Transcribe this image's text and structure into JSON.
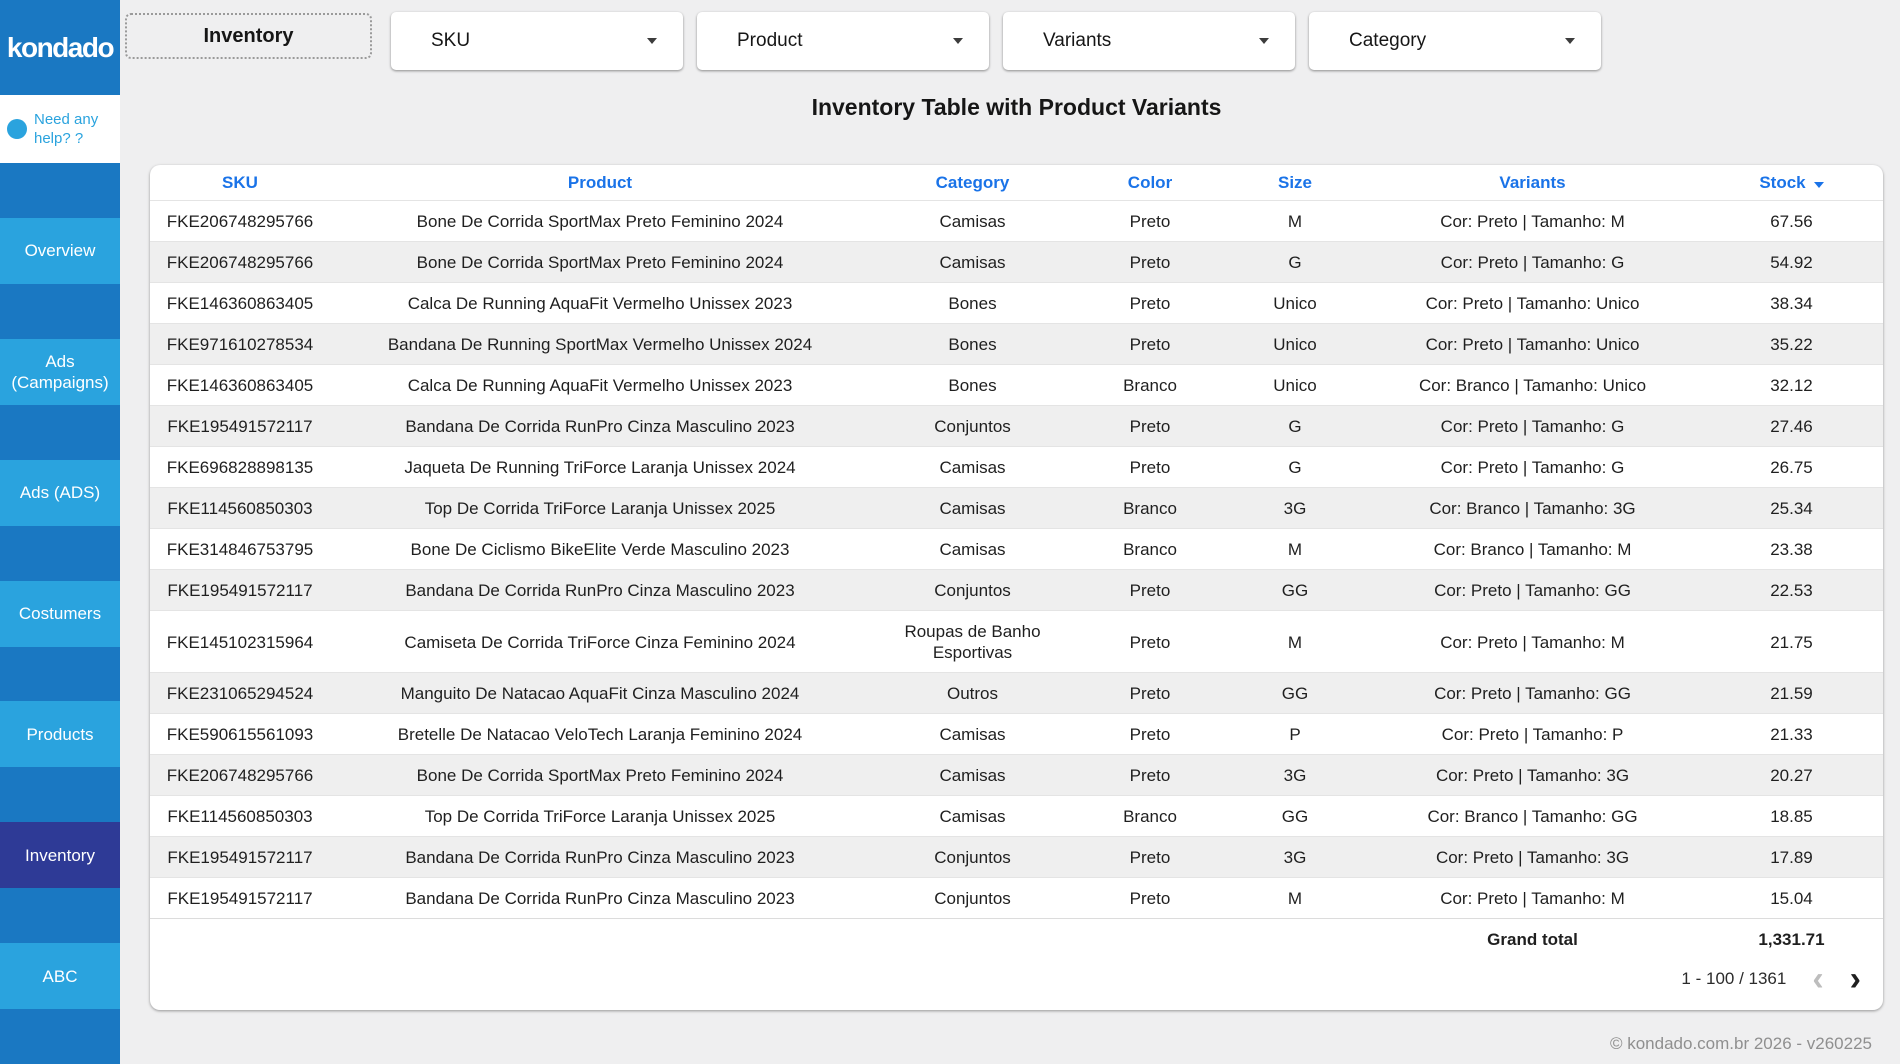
{
  "sidebar": {
    "logo": "kondado",
    "help": {
      "line1": "Need any",
      "line2": "help? ?"
    },
    "items": [
      {
        "label": "Overview",
        "active": false
      },
      {
        "label": "Ads (Campaigns)",
        "active": false
      },
      {
        "label": "Ads (ADS)",
        "active": false
      },
      {
        "label": "Costumers",
        "active": false
      },
      {
        "label": "Products",
        "active": false
      },
      {
        "label": "Inventory",
        "active": true
      },
      {
        "label": "ABC",
        "active": false
      }
    ]
  },
  "topbar": {
    "page_tab": "Inventory",
    "filters": [
      {
        "label": "SKU"
      },
      {
        "label": "Product"
      },
      {
        "label": "Variants"
      },
      {
        "label": "Category"
      }
    ]
  },
  "table": {
    "title": "Inventory Table with Product Variants",
    "columns": [
      "SKU",
      "Product",
      "Category",
      "Color",
      "Size",
      "Variants",
      "Stock"
    ],
    "sorted_column": "Stock",
    "sort_direction": "desc",
    "rows": [
      [
        "FKE206748295766",
        "Bone De Corrida SportMax Preto Feminino 2024",
        "Camisas",
        "Preto",
        "M",
        "Cor: Preto | Tamanho: M",
        "67.56"
      ],
      [
        "FKE206748295766",
        "Bone De Corrida SportMax Preto Feminino 2024",
        "Camisas",
        "Preto",
        "G",
        "Cor: Preto | Tamanho: G",
        "54.92"
      ],
      [
        "FKE146360863405",
        "Calca De Running AquaFit Vermelho Unissex 2023",
        "Bones",
        "Preto",
        "Unico",
        "Cor: Preto | Tamanho: Unico",
        "38.34"
      ],
      [
        "FKE971610278534",
        "Bandana De Running SportMax Vermelho Unissex 2024",
        "Bones",
        "Preto",
        "Unico",
        "Cor: Preto | Tamanho: Unico",
        "35.22"
      ],
      [
        "FKE146360863405",
        "Calca De Running AquaFit Vermelho Unissex 2023",
        "Bones",
        "Branco",
        "Unico",
        "Cor: Branco | Tamanho: Unico",
        "32.12"
      ],
      [
        "FKE195491572117",
        "Bandana De Corrida RunPro Cinza Masculino 2023",
        "Conjuntos",
        "Preto",
        "G",
        "Cor: Preto | Tamanho: G",
        "27.46"
      ],
      [
        "FKE696828898135",
        "Jaqueta De Running TriForce Laranja Unissex 2024",
        "Camisas",
        "Preto",
        "G",
        "Cor: Preto | Tamanho: G",
        "26.75"
      ],
      [
        "FKE114560850303",
        "Top De Corrida TriForce Laranja Unissex 2025",
        "Camisas",
        "Branco",
        "3G",
        "Cor: Branco | Tamanho: 3G",
        "25.34"
      ],
      [
        "FKE314846753795",
        "Bone De Ciclismo BikeElite Verde Masculino 2023",
        "Camisas",
        "Branco",
        "M",
        "Cor: Branco | Tamanho: M",
        "23.38"
      ],
      [
        "FKE195491572117",
        "Bandana De Corrida RunPro Cinza Masculino 2023",
        "Conjuntos",
        "Preto",
        "GG",
        "Cor: Preto | Tamanho: GG",
        "22.53"
      ],
      [
        "FKE145102315964",
        "Camiseta De Corrida TriForce Cinza Feminino 2024",
        "Roupas de Banho Esportivas",
        "Preto",
        "M",
        "Cor: Preto | Tamanho: M",
        "21.75"
      ],
      [
        "FKE231065294524",
        "Manguito De Natacao AquaFit Cinza Masculino 2024",
        "Outros",
        "Preto",
        "GG",
        "Cor: Preto | Tamanho: GG",
        "21.59"
      ],
      [
        "FKE590615561093",
        "Bretelle De Natacao VeloTech Laranja Feminino 2024",
        "Camisas",
        "Preto",
        "P",
        "Cor: Preto | Tamanho: P",
        "21.33"
      ],
      [
        "FKE206748295766",
        "Bone De Corrida SportMax Preto Feminino 2024",
        "Camisas",
        "Preto",
        "3G",
        "Cor: Preto | Tamanho: 3G",
        "20.27"
      ],
      [
        "FKE114560850303",
        "Top De Corrida TriForce Laranja Unissex 2025",
        "Camisas",
        "Branco",
        "GG",
        "Cor: Branco | Tamanho: GG",
        "18.85"
      ],
      [
        "FKE195491572117",
        "Bandana De Corrida RunPro Cinza Masculino 2023",
        "Conjuntos",
        "Preto",
        "3G",
        "Cor: Preto | Tamanho: 3G",
        "17.89"
      ],
      [
        "FKE195491572117",
        "Bandana De Corrida RunPro Cinza Masculino 2023",
        "Conjuntos",
        "Preto",
        "M",
        "Cor: Preto | Tamanho: M",
        "15.04"
      ]
    ],
    "grand_total_label": "Grand total",
    "grand_total_value": "1,331.71",
    "pagination": {
      "range": "1 - 100 / 1361"
    }
  },
  "icons": {
    "help_dot": "circle",
    "dropdown_caret": "triangle-down",
    "sort_caret": "triangle-down",
    "prev": "‹",
    "next": "›"
  },
  "footer": {
    "copyright": "© kondado.com.br 2026 - v260225"
  },
  "colors": {
    "sidebar_base": "#1a78c2",
    "sidebar_item": "#2aa3de",
    "sidebar_active": "#2e3a96",
    "header_link_blue": "#1a73e8",
    "row_stripe": "#efefef",
    "canvas": "#efeff0"
  }
}
